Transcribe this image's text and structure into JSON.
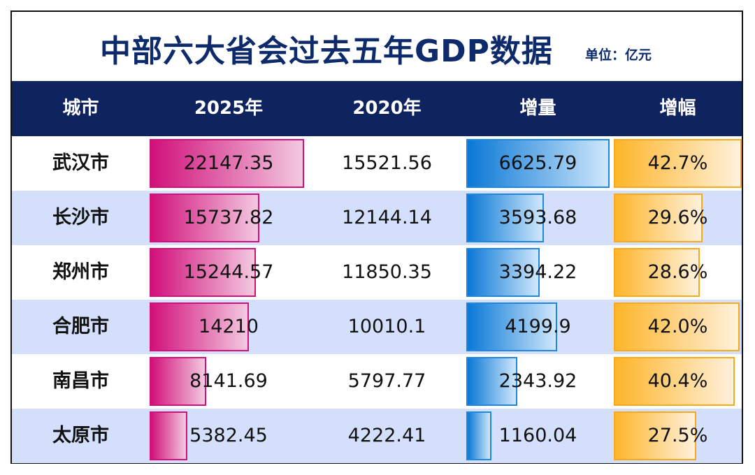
{
  "title": "中部六大省会过去五年GDP数据",
  "unit": "单位：亿元",
  "headers": [
    "城市",
    "2025年",
    "2020年",
    "增量",
    "增幅"
  ],
  "colors": {
    "title": "#0d2a6b",
    "header_bg": "#0f235e",
    "row_alt_bg": "#d4e0fb",
    "bar_2025": "#d1107a",
    "bar_increase": "#0a78d6",
    "bar_growth": "#fdb52a"
  },
  "chart_data": {
    "type": "table",
    "columns": [
      "城市",
      "2025年",
      "2020年",
      "增量",
      "增幅"
    ],
    "rows": [
      {
        "city": "武汉市",
        "gdp_2025": "22147.35",
        "gdp_2020": "15521.56",
        "increase": "6625.79",
        "growth": "42.7%"
      },
      {
        "city": "长沙市",
        "gdp_2025": "15737.82",
        "gdp_2020": "12144.14",
        "increase": "3593.68",
        "growth": "29.6%"
      },
      {
        "city": "郑州市",
        "gdp_2025": "15244.57",
        "gdp_2020": "11850.35",
        "increase": "3394.22",
        "growth": "28.6%"
      },
      {
        "city": "合肥市",
        "gdp_2025": "14210",
        "gdp_2020": "10010.1",
        "increase": "4199.9",
        "growth": "42.0%"
      },
      {
        "city": "南昌市",
        "gdp_2025": "8141.69",
        "gdp_2020": "5797.77",
        "increase": "2343.92",
        "growth": "40.4%"
      },
      {
        "city": "太原市",
        "gdp_2025": "5382.45",
        "gdp_2020": "4222.41",
        "increase": "1160.04",
        "growth": "27.5%"
      }
    ]
  }
}
